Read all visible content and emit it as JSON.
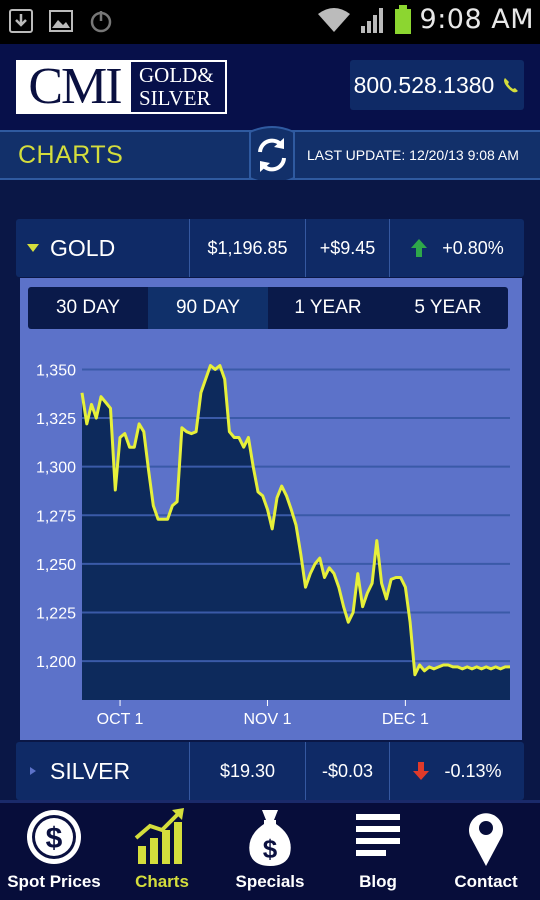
{
  "status_bar": {
    "time": "9:08 AM"
  },
  "header": {
    "logo": {
      "main": "CMI",
      "line1": "GOLD&",
      "line2": "SILVER"
    },
    "phone": "800.528.1380"
  },
  "charts_bar": {
    "title": "CHARTS",
    "last_update": "LAST UPDATE: 12/20/13 9:08 AM"
  },
  "metals": [
    {
      "name": "GOLD",
      "price": "$1,196.85",
      "change": "+$9.45",
      "percent": "+0.80%",
      "direction": "up",
      "expanded": true
    },
    {
      "name": "SILVER",
      "price": "$19.30",
      "change": "-$0.03",
      "percent": "-0.13%",
      "direction": "down",
      "expanded": false
    }
  ],
  "tabs": [
    {
      "label": "30 DAY",
      "active": false
    },
    {
      "label": "90 DAY",
      "active": true
    },
    {
      "label": "1 YEAR",
      "active": false
    },
    {
      "label": "5 YEAR",
      "active": false
    }
  ],
  "colors": {
    "accent": "#d4dd3c",
    "up": "#2ea84a",
    "down": "#e03a2a",
    "plot_fill": "#0d2a5c",
    "panel_bg": "#5c72c9",
    "line": "#e6f03a"
  },
  "chart_data": {
    "type": "area",
    "title": "",
    "xlabel": "",
    "ylabel": "",
    "ylim": [
      1180,
      1360
    ],
    "xlim": [
      0,
      90
    ],
    "yticks": [
      1200,
      1225,
      1250,
      1275,
      1300,
      1325,
      1350
    ],
    "ytick_labels": [
      "1,200",
      "1,225",
      "1,250",
      "1,275",
      "1,300",
      "1,325",
      "1,350"
    ],
    "xticks": [
      {
        "x": 8,
        "label": "OCT 1"
      },
      {
        "x": 39,
        "label": "NOV 1"
      },
      {
        "x": 68,
        "label": "DEC 1"
      }
    ],
    "grid": true,
    "series": [
      {
        "x": [
          0,
          1,
          2,
          3,
          4,
          5,
          6,
          7,
          8,
          9,
          10,
          11,
          12,
          13,
          14,
          15,
          16,
          17,
          18,
          19,
          20,
          21,
          22,
          23,
          24,
          25,
          26,
          27,
          28,
          29,
          30,
          31,
          32,
          33,
          34,
          35,
          36,
          37,
          38,
          39,
          40,
          41,
          42,
          43,
          44,
          45,
          46,
          47,
          48,
          49,
          50,
          51,
          52,
          53,
          54,
          55,
          56,
          57,
          58,
          59,
          60,
          61,
          62,
          63,
          64,
          65,
          66,
          67,
          68,
          69,
          70,
          71,
          72,
          73,
          74,
          75,
          76,
          77,
          78,
          79,
          80,
          81,
          82,
          83,
          84,
          85,
          86,
          87,
          88,
          89,
          90
        ],
        "y": [
          1338,
          1322,
          1332,
          1325,
          1336,
          1333,
          1330,
          1288,
          1315,
          1317,
          1310,
          1310,
          1322,
          1318,
          1298,
          1280,
          1273,
          1273,
          1273,
          1280,
          1282,
          1320,
          1318,
          1317,
          1318,
          1338,
          1345,
          1352,
          1350,
          1352,
          1345,
          1318,
          1315,
          1315,
          1310,
          1315,
          1300,
          1287,
          1285,
          1278,
          1268,
          1284,
          1290,
          1285,
          1278,
          1270,
          1255,
          1238,
          1245,
          1250,
          1253,
          1243,
          1248,
          1245,
          1238,
          1228,
          1220,
          1225,
          1245,
          1228,
          1235,
          1240,
          1262,
          1240,
          1232,
          1242,
          1243,
          1243,
          1238,
          1220,
          1193,
          1198,
          1195,
          1197,
          1196,
          1197,
          1198,
          1198,
          1197,
          1197,
          1196,
          1197,
          1196,
          1197,
          1196,
          1197,
          1196,
          1197,
          1196,
          1197,
          1197
        ]
      }
    ]
  },
  "nav": [
    {
      "label": "Spot Prices",
      "icon": "dollar-coin-icon",
      "active": false
    },
    {
      "label": "Charts",
      "icon": "bar-chart-icon",
      "active": true
    },
    {
      "label": "Specials",
      "icon": "money-bag-icon",
      "active": false
    },
    {
      "label": "Blog",
      "icon": "blog-lines-icon",
      "active": false
    },
    {
      "label": "Contact",
      "icon": "location-pin-icon",
      "active": false
    }
  ]
}
